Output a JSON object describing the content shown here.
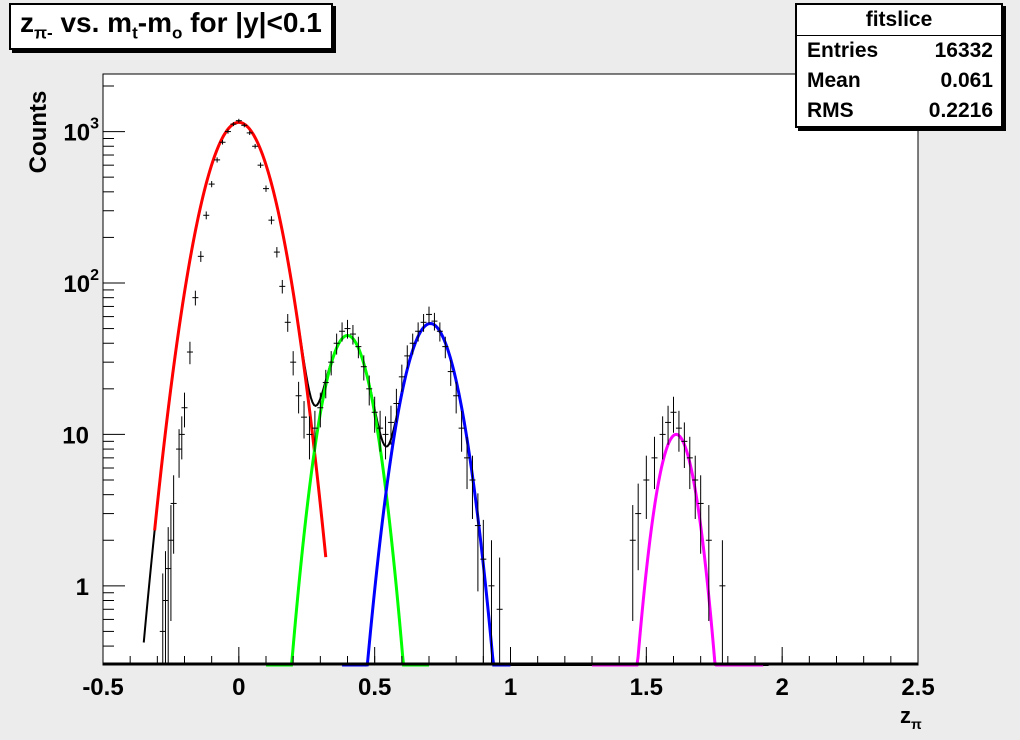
{
  "chart_data": {
    "type": "line",
    "title": {
      "main": "z",
      "sub": "π-",
      "part2": " vs. m",
      "sub2": "t",
      "part3": "-m",
      "sub3": "o",
      "part4": " for |y|<0.1"
    },
    "xlabel": "z",
    "xlabel_sub": "π",
    "ylabel": "Counts",
    "xlim": [
      -0.5,
      2.5
    ],
    "ylim": [
      0.3,
      2400
    ],
    "yscale": "log",
    "xticks": [
      {
        "v": -0.5,
        "label": "-0.5"
      },
      {
        "v": 0,
        "label": "0"
      },
      {
        "v": 0.5,
        "label": "0.5"
      },
      {
        "v": 1,
        "label": "1"
      },
      {
        "v": 1.5,
        "label": "1.5"
      },
      {
        "v": 2,
        "label": "2"
      },
      {
        "v": 2.5,
        "label": "2.5"
      }
    ],
    "yticks": [
      {
        "v": 1,
        "label": "1",
        "exp": ""
      },
      {
        "v": 10,
        "label": "10",
        "exp": ""
      },
      {
        "v": 100,
        "label": "10",
        "exp": "2"
      },
      {
        "v": 1000,
        "label": "10",
        "exp": "3"
      }
    ],
    "stats": {
      "title": "fitslice",
      "rows": [
        {
          "label": "Entries",
          "value": "16332"
        },
        {
          "label": "Mean",
          "value": "0.061"
        },
        {
          "label": "RMS",
          "value": "0.2216"
        }
      ]
    },
    "series": [
      {
        "color": "#ff0000",
        "amplitude": 1150,
        "mean": 0.0,
        "sigma": 0.088,
        "xrange": [
          -0.31,
          0.32
        ]
      },
      {
        "color": "#00ff00",
        "amplitude": 45,
        "mean": 0.4,
        "sigma": 0.065,
        "xrange": [
          0.1,
          0.7
        ]
      },
      {
        "color": "#0000ff",
        "amplitude": 54,
        "mean": 0.705,
        "sigma": 0.072,
        "xrange": [
          0.38,
          1.0
        ]
      },
      {
        "color": "#ff00ff",
        "amplitude": 10,
        "mean": 1.61,
        "sigma": 0.054,
        "xrange": [
          1.3,
          1.93
        ]
      }
    ],
    "total_fit_color": "#000000",
    "data_points": [
      [
        -0.28,
        0.5
      ],
      [
        -0.27,
        0.8
      ],
      [
        -0.26,
        1.3
      ],
      [
        -0.25,
        2.0
      ],
      [
        -0.24,
        3.5
      ],
      [
        -0.22,
        8.0
      ],
      [
        -0.21,
        10.0
      ],
      [
        -0.2,
        15.0
      ],
      [
        -0.18,
        35.0
      ],
      [
        -0.16,
        80.0
      ],
      [
        -0.14,
        150.0
      ],
      [
        -0.12,
        280.0
      ],
      [
        -0.1,
        450.0
      ],
      [
        -0.08,
        650.0
      ],
      [
        -0.06,
        850.0
      ],
      [
        -0.04,
        1000.0
      ],
      [
        -0.02,
        1120.0
      ],
      [
        0.0,
        1180.0
      ],
      [
        0.02,
        1100.0
      ],
      [
        0.04,
        980.0
      ],
      [
        0.06,
        800.0
      ],
      [
        0.08,
        600.0
      ],
      [
        0.1,
        420.0
      ],
      [
        0.12,
        260.0
      ],
      [
        0.14,
        160.0
      ],
      [
        0.16,
        95.0
      ],
      [
        0.18,
        55.0
      ],
      [
        0.2,
        30.0
      ],
      [
        0.22,
        18.0
      ],
      [
        0.24,
        13.0
      ],
      [
        0.26,
        10.0
      ],
      [
        0.28,
        11.0
      ],
      [
        0.3,
        15.0
      ],
      [
        0.32,
        22.0
      ],
      [
        0.34,
        30.0
      ],
      [
        0.36,
        40.0
      ],
      [
        0.38,
        48.0
      ],
      [
        0.4,
        50.0
      ],
      [
        0.42,
        46.0
      ],
      [
        0.44,
        38.0
      ],
      [
        0.46,
        28.0
      ],
      [
        0.48,
        20.0
      ],
      [
        0.5,
        14.0
      ],
      [
        0.52,
        11.0
      ],
      [
        0.54,
        10.0
      ],
      [
        0.56,
        12.0
      ],
      [
        0.58,
        16.0
      ],
      [
        0.6,
        24.0
      ],
      [
        0.62,
        33.0
      ],
      [
        0.64,
        40.0
      ],
      [
        0.66,
        48.0
      ],
      [
        0.68,
        55.0
      ],
      [
        0.7,
        62.0
      ],
      [
        0.72,
        56.0
      ],
      [
        0.74,
        48.0
      ],
      [
        0.76,
        38.0
      ],
      [
        0.78,
        26.0
      ],
      [
        0.8,
        18.0
      ],
      [
        0.82,
        11.0
      ],
      [
        0.84,
        7.0
      ],
      [
        0.86,
        5.0
      ],
      [
        0.88,
        2.5
      ],
      [
        0.9,
        1.5
      ],
      [
        0.93,
        1.0
      ],
      [
        0.96,
        0.7
      ],
      [
        1.45,
        2.0
      ],
      [
        1.47,
        3.0
      ],
      [
        1.5,
        5.0
      ],
      [
        1.53,
        7.0
      ],
      [
        1.56,
        10.0
      ],
      [
        1.58,
        12.0
      ],
      [
        1.6,
        14.0
      ],
      [
        1.62,
        11.0
      ],
      [
        1.64,
        9.0
      ],
      [
        1.66,
        7.0
      ],
      [
        1.68,
        5.0
      ],
      [
        1.7,
        3.5
      ],
      [
        1.73,
        2.0
      ],
      [
        1.78,
        1.0
      ]
    ]
  }
}
